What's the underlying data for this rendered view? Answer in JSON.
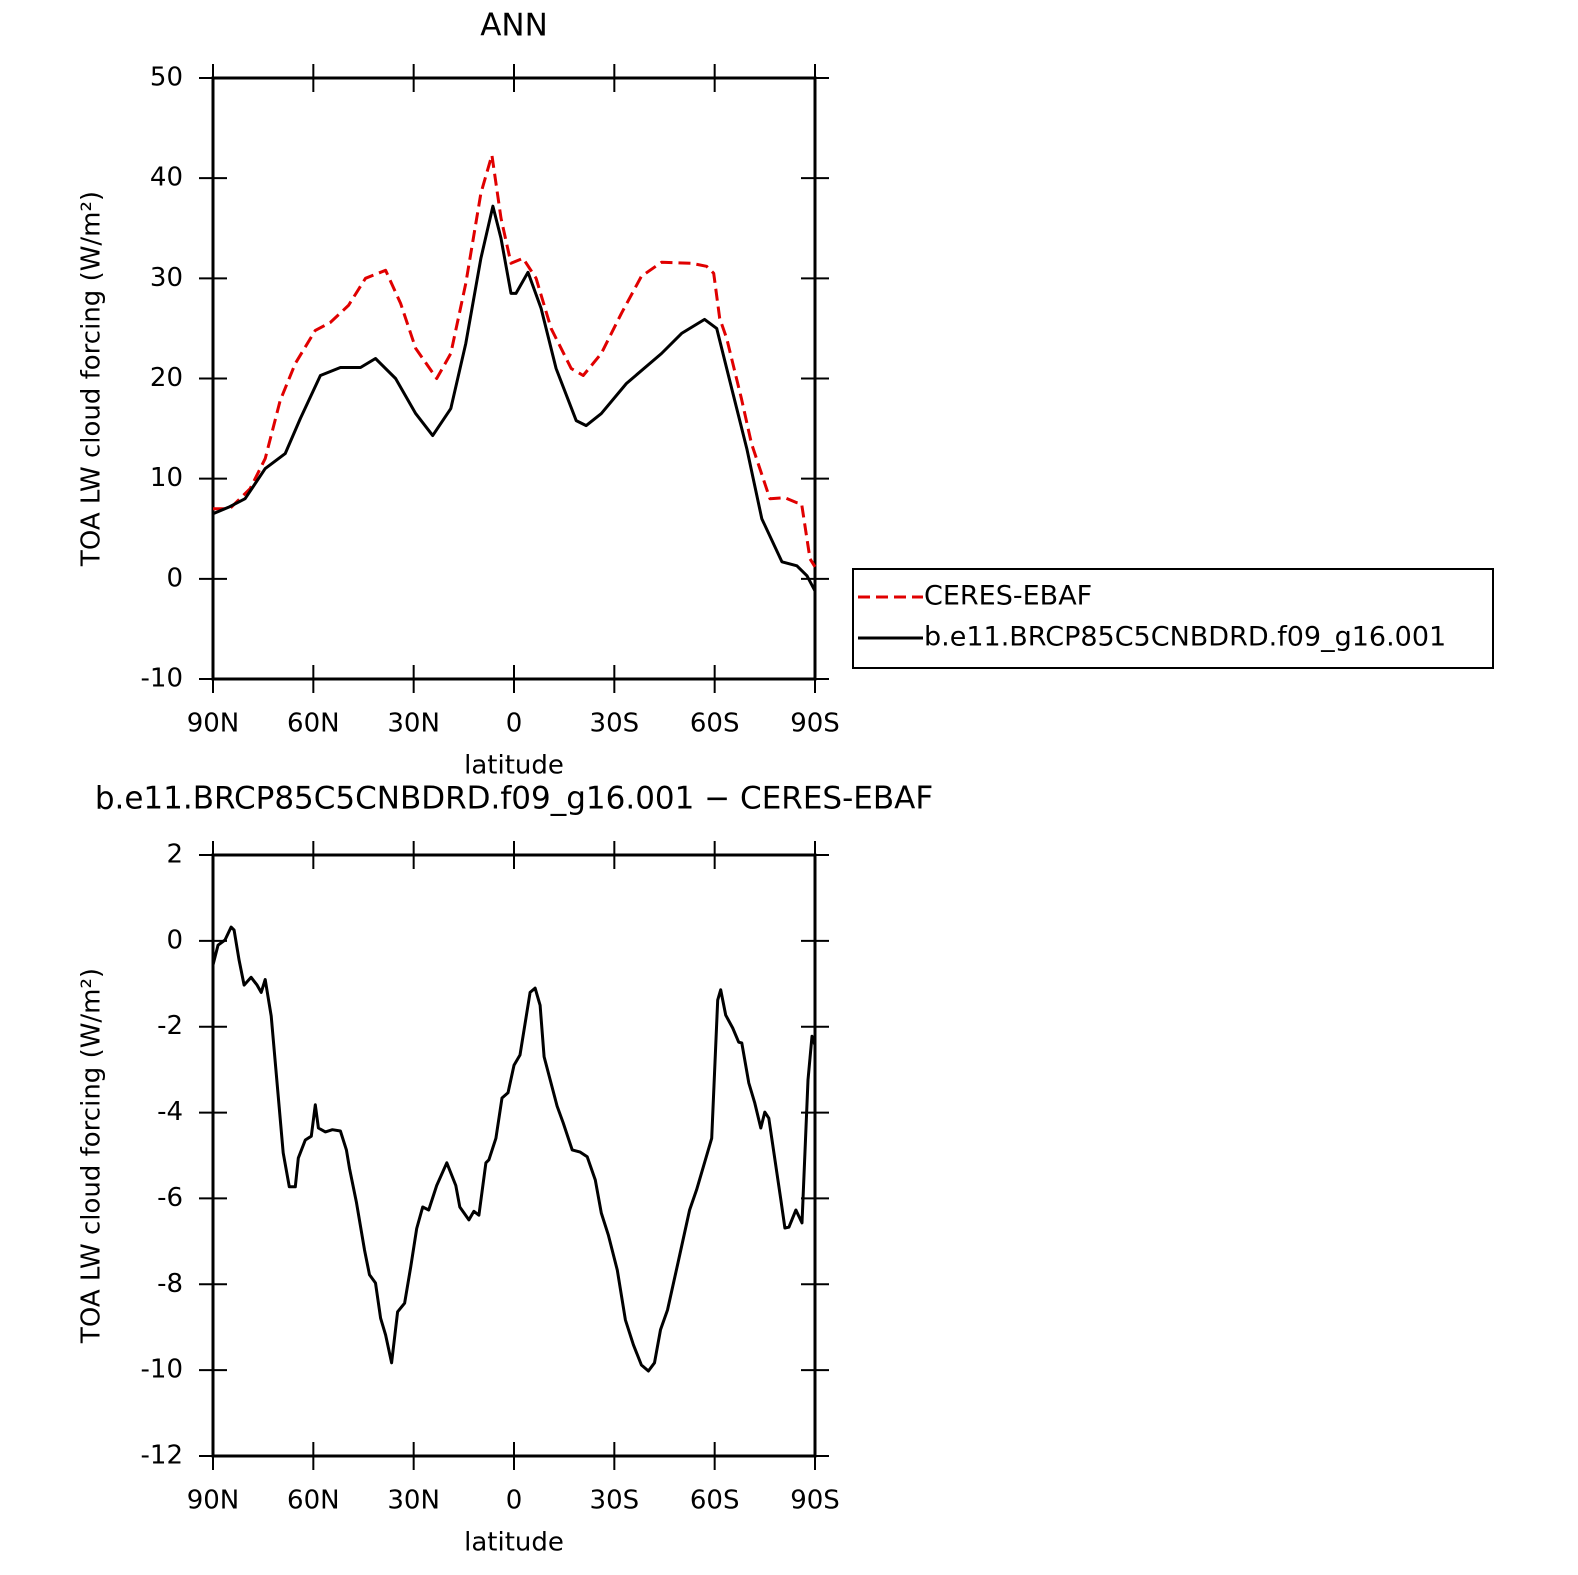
{
  "chart_data": [
    {
      "type": "line",
      "title": "ANN",
      "xlabel": "latitude",
      "ylabel": "TOA LW cloud forcing (W/m²)",
      "xlim": [
        90,
        -90
      ],
      "xticks": [
        {
          "value": 90,
          "label": "90N"
        },
        {
          "value": 60,
          "label": "60N"
        },
        {
          "value": 30,
          "label": "30N"
        },
        0,
        {
          "value": -30,
          "label": "30S"
        },
        {
          "value": -60,
          "label": "60S"
        },
        {
          "value": -90,
          "label": "90S"
        }
      ],
      "ylim": [
        -10,
        50
      ],
      "yticks": [
        -10,
        0,
        10,
        20,
        30,
        40,
        50
      ],
      "legend": "outside-right",
      "series": [
        {
          "name": "CERES-EBAF",
          "color": "#e00000",
          "linestyle": "dashed",
          "x": [
            90,
            85,
            78.9,
            74.4,
            69.9,
            65.4,
            59.4,
            54.9,
            49.5,
            44.4,
            38.4,
            33.9,
            29.4,
            23.1,
            18.9,
            14.4,
            9.9,
            6.6,
            3.9,
            0.9,
            -2.7,
            -6.6,
            -11.1,
            -17.1,
            -20.7,
            -26.1,
            -32.1,
            -38.1,
            -44.1,
            -53.1,
            -57.6,
            -59.7,
            -61.5,
            -63.6,
            -68,
            -71,
            -76.5,
            -81,
            -84.6,
            -86,
            -88.5,
            -90
          ],
          "values": [
            7,
            7,
            9,
            12,
            17.8,
            21.5,
            24.8,
            25.6,
            27.3,
            30,
            30.8,
            27.5,
            23,
            20,
            22.5,
            29.5,
            38.5,
            42.3,
            36,
            31.5,
            32,
            30,
            25,
            21,
            20.3,
            22.5,
            26.5,
            30.2,
            31.6,
            31.5,
            31.2,
            30.5,
            26,
            24,
            18,
            13.5,
            8,
            8.1,
            7.6,
            7.5,
            2,
            1.2
          ]
        },
        {
          "name": "b.e11.BRCP85C5CNBDRD.f09_g16.001",
          "color": "#000000",
          "linestyle": "solid",
          "x": [
            90,
            85,
            80.4,
            74.4,
            68.4,
            63.9,
            57.9,
            51.9,
            45.9,
            41.4,
            35.4,
            29.4,
            24.3,
            18.9,
            14.4,
            9.9,
            6.3,
            3.9,
            0.9,
            -0.6,
            -4.2,
            -8.1,
            -12.6,
            -18.6,
            -21.6,
            -26.1,
            -33.6,
            -44.1,
            -50.1,
            -57,
            -60.6,
            -65.1,
            -69.6,
            -74.1,
            -80.1,
            -84.6,
            -87.6,
            -90
          ],
          "values": [
            6.5,
            7.2,
            8,
            11,
            12.5,
            16,
            20.3,
            21.1,
            21.1,
            22,
            20,
            16.5,
            14.3,
            17,
            23.5,
            32,
            37.2,
            34,
            28.5,
            28.5,
            30.6,
            27,
            21,
            15.8,
            15.3,
            16.5,
            19.5,
            22.5,
            24.5,
            25.9,
            25,
            19,
            13,
            6,
            1.7,
            1.3,
            0.3,
            -1.2
          ]
        }
      ]
    },
    {
      "type": "line",
      "title": "b.e11.BRCP85C5CNBDRD.f09_g16.001 − CERES-EBAF",
      "xlabel": "latitude",
      "ylabel": "TOA LW cloud forcing (W/m²)",
      "xlim": [
        90,
        -90
      ],
      "xticks": [
        {
          "value": 90,
          "label": "90N"
        },
        {
          "value": 60,
          "label": "60N"
        },
        {
          "value": 30,
          "label": "30N"
        },
        0,
        {
          "value": -30,
          "label": "30S"
        },
        {
          "value": -60,
          "label": "60S"
        },
        {
          "value": -90,
          "label": "90S"
        }
      ],
      "ylim": [
        -12,
        2
      ],
      "yticks": [
        -12,
        -10,
        -8,
        -6,
        -4,
        -2,
        0,
        2
      ],
      "color": "#000000",
      "x": [
        90,
        88.5,
        86.4,
        84.6,
        83.7,
        82.2,
        80.7,
        78.6,
        76.8,
        75.6,
        74.4,
        72.6,
        69,
        67.2,
        65.4,
        64.5,
        62.4,
        60.6,
        59.4,
        58.5,
        56.4,
        54.3,
        51.9,
        50.1,
        49.2,
        47.1,
        44.7,
        43.2,
        41.4,
        39.9,
        38.4,
        36.6,
        34.8,
        32.7,
        30.9,
        29.1,
        27.3,
        25.5,
        23.1,
        20.1,
        17.4,
        16.2,
        13.5,
        12,
        10.5,
        8.4,
        7.5,
        5.4,
        3.6,
        1.8,
        0,
        -1.8,
        -4.8,
        -6.3,
        -7.8,
        -9,
        -12.9,
        -14.7,
        -17.4,
        -19.8,
        -21.9,
        -24.3,
        -26.1,
        -28.2,
        -30.9,
        -33.3,
        -35.7,
        -38.1,
        -40.2,
        -42,
        -43.8,
        -45.9,
        -48.9,
        -52.5,
        -54.6,
        -59.1,
        -60.9,
        -61.8,
        -63.3,
        -65.4,
        -67.2,
        -68.1,
        -70.2,
        -72,
        -73.8,
        -75,
        -76.2,
        -79.8,
        -81,
        -82.2,
        -84.3,
        -86.1,
        -87.9,
        -89.1,
        -90
      ],
      "values": [
        -0.56,
        -0.1,
        0.02,
        0.32,
        0.25,
        -0.45,
        -1.03,
        -0.85,
        -1.03,
        -1.2,
        -0.9,
        -1.75,
        -4.94,
        -5.73,
        -5.73,
        -5.06,
        -4.64,
        -4.55,
        -3.82,
        -4.36,
        -4.45,
        -4.4,
        -4.43,
        -4.87,
        -5.3,
        -6.1,
        -7.2,
        -7.78,
        -7.97,
        -8.79,
        -9.18,
        -9.83,
        -8.64,
        -8.44,
        -7.6,
        -6.7,
        -6.2,
        -6.27,
        -5.7,
        -5.17,
        -5.7,
        -6.2,
        -6.5,
        -6.3,
        -6.39,
        -5.17,
        -5.1,
        -4.6,
        -3.66,
        -3.54,
        -2.9,
        -2.66,
        -1.2,
        -1.1,
        -1.5,
        -2.7,
        -3.85,
        -4.24,
        -4.87,
        -4.92,
        -5.03,
        -5.57,
        -6.34,
        -6.85,
        -7.67,
        -8.83,
        -9.41,
        -9.88,
        -10.02,
        -9.83,
        -9.06,
        -8.6,
        -7.55,
        -6.27,
        -5.8,
        -4.6,
        -1.38,
        -1.14,
        -1.73,
        -2.03,
        -2.36,
        -2.38,
        -3.31,
        -3.78,
        -4.36,
        -3.99,
        -4.13,
        -6.04,
        -6.69,
        -6.67,
        -6.27,
        -6.57,
        -3.24,
        -2.22,
        -2.43
      ]
    }
  ]
}
